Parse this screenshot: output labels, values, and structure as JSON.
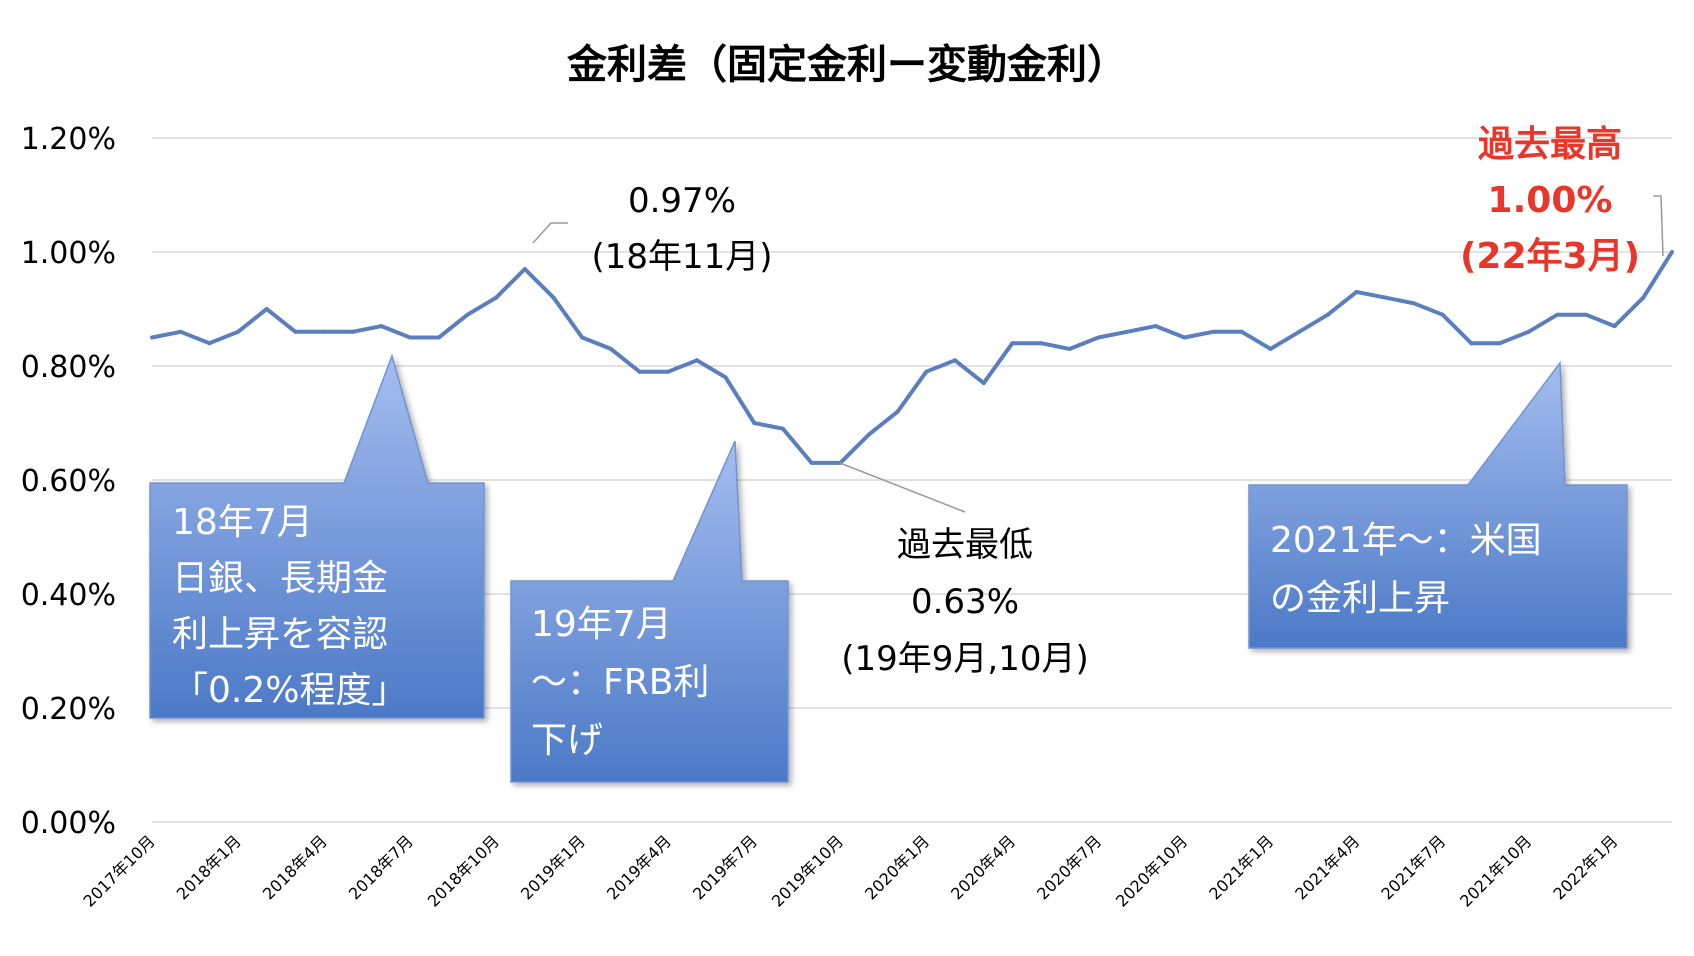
{
  "chart_data": {
    "type": "line",
    "title": "金利差（固定金利ー変動金利）",
    "y_ticks": [
      "0.00%",
      "0.20%",
      "0.40%",
      "0.60%",
      "0.80%",
      "1.00%",
      "1.20%"
    ],
    "ylim": [
      0,
      1.2
    ],
    "grid": true,
    "x_tick_labels": [
      "2017年10月",
      "2018年1月",
      "2018年4月",
      "2018年7月",
      "2018年10月",
      "2019年1月",
      "2019年4月",
      "2019年7月",
      "2019年10月",
      "2020年1月",
      "2020年4月",
      "2020年7月",
      "2020年10月",
      "2021年1月",
      "2021年4月",
      "2021年7月",
      "2021年10月",
      "2022年1月"
    ],
    "x": [
      "2017-10",
      "2017-11",
      "2017-12",
      "2018-01",
      "2018-02",
      "2018-03",
      "2018-04",
      "2018-05",
      "2018-06",
      "2018-07",
      "2018-08",
      "2018-09",
      "2018-10",
      "2018-11",
      "2018-12",
      "2019-01",
      "2019-02",
      "2019-03",
      "2019-04",
      "2019-05",
      "2019-06",
      "2019-07",
      "2019-08",
      "2019-09",
      "2019-10",
      "2019-11",
      "2019-12",
      "2020-01",
      "2020-02",
      "2020-03",
      "2020-04",
      "2020-05",
      "2020-06",
      "2020-07",
      "2020-08",
      "2020-09",
      "2020-10",
      "2020-11",
      "2020-12",
      "2021-01",
      "2021-02",
      "2021-03",
      "2021-04",
      "2021-05",
      "2021-06",
      "2021-07",
      "2021-08",
      "2021-09",
      "2021-10",
      "2021-11",
      "2021-12",
      "2022-01",
      "2022-02",
      "2022-03"
    ],
    "series": [
      {
        "color": "#5b7fbd",
        "values": [
          0.85,
          0.86,
          0.84,
          0.86,
          0.9,
          0.86,
          0.86,
          0.86,
          0.87,
          0.85,
          0.85,
          0.89,
          0.92,
          0.97,
          0.92,
          0.85,
          0.83,
          0.79,
          0.79,
          0.81,
          0.78,
          0.7,
          0.69,
          0.63,
          0.63,
          0.68,
          0.72,
          0.79,
          0.81,
          0.77,
          0.84,
          0.84,
          0.83,
          0.85,
          0.86,
          0.87,
          0.85,
          0.86,
          0.86,
          0.83,
          0.86,
          0.89,
          0.93,
          0.92,
          0.91,
          0.89,
          0.84,
          0.84,
          0.86,
          0.89,
          0.89,
          0.87,
          0.92,
          1.0
        ]
      }
    ],
    "annotations": {
      "peak_2018": [
        "0.97%",
        "(18年11月)"
      ],
      "low_2019": [
        "過去最低",
        "0.63%",
        "(19年9月,10月)"
      ],
      "high_2022": [
        "過去最高",
        "1.00%",
        "(22年3月)"
      ]
    },
    "callouts": {
      "boj_2018": [
        "18年7月",
        "日銀、長期金",
        "利上昇を容認",
        "「0.2%程度」"
      ],
      "frb_2019": [
        "19年7月",
        "～：FRB利",
        "下げ"
      ],
      "us_2021": [
        "2021年～：米国",
        "の金利上昇"
      ]
    },
    "colors": {
      "callout_top": "#a4bdf0",
      "callout_bottom": "#4c79c6",
      "highlight": "#e8372a",
      "grid": "#d9d9d9"
    }
  }
}
